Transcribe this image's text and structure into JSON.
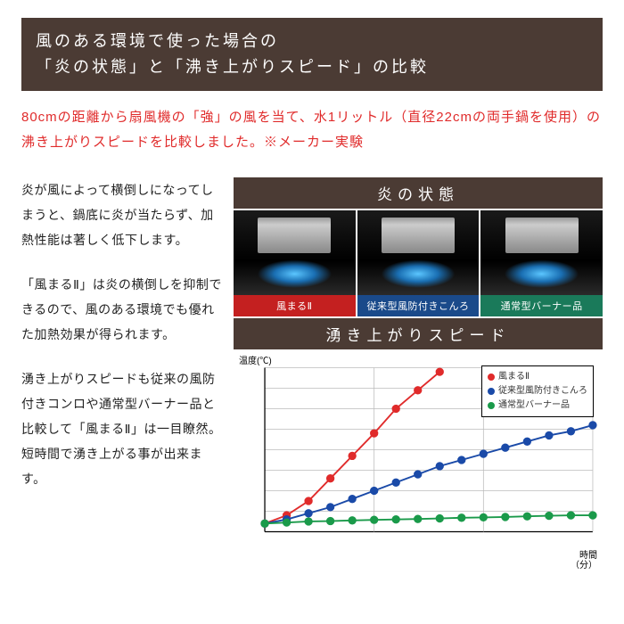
{
  "header": {
    "line1": "風のある環境で使った場合の",
    "line2": "「炎の状態」と「沸き上がりスピード」の比較"
  },
  "test_desc": "80cmの距離から扇風機の「強」の風を当て、水1リットル（直径22cmの両手鍋を使用）の沸き上がりスピードを比較しました。※メーカー実験",
  "paragraphs": {
    "p1": "炎が風によって横倒しになってしまうと、鍋底に炎が当たらず、加熱性能は著しく低下します。",
    "p2": "「風まるⅡ」は炎の横倒しを抑制できるので、風のある環境でも優れた加熱効果が得られます。",
    "p3": "湧き上がりスピードも従来の風防付きコンロや通常型バーナー品と比較して「風まるⅡ」は一目瞭然。短時間で湧き上がる事が出来ます。"
  },
  "flame_section": {
    "title": "炎の状態",
    "items": [
      {
        "label": "風まるⅡ",
        "label_color": "#c42020"
      },
      {
        "label": "従来型風防付きこんろ",
        "label_color": "#1a4a8a"
      },
      {
        "label": "通常型バーナー品",
        "label_color": "#1a7a5a"
      }
    ]
  },
  "chart_section": {
    "title": "湧き上がりスピード",
    "ylabel": "温度(℃)",
    "xlabel_top": "時間",
    "xlabel_bottom": "（分）",
    "ylim": [
      20,
      100
    ],
    "ytick_step": 10,
    "xlim": [
      0,
      15
    ],
    "xticks": [
      0,
      5,
      10,
      15
    ],
    "grid_color": "#bbbbbb",
    "axis_color": "#000000",
    "tick_fontsize": 10,
    "marker_radius": 3.2,
    "line_width": 1.5,
    "series": [
      {
        "name": "風まるⅡ",
        "color": "#e02b2b",
        "x": [
          0,
          1,
          2,
          3,
          4,
          5,
          6,
          7,
          8
        ],
        "y": [
          24,
          28,
          35,
          46,
          57,
          68,
          80,
          89,
          98
        ]
      },
      {
        "name": "従来型風防付きこんろ",
        "color": "#1a4aa8",
        "x": [
          0,
          1,
          2,
          3,
          4,
          5,
          6,
          7,
          8,
          9,
          10,
          11,
          12,
          13,
          14,
          15
        ],
        "y": [
          24,
          26,
          29,
          32,
          36,
          40,
          44,
          48,
          52,
          55,
          58,
          61,
          64,
          67,
          69,
          72
        ]
      },
      {
        "name": "通常型バーナー品",
        "color": "#1a9a4a",
        "x": [
          0,
          1,
          2,
          3,
          4,
          5,
          6,
          7,
          8,
          9,
          10,
          11,
          12,
          13,
          14,
          15
        ],
        "y": [
          24,
          24.5,
          25,
          25.2,
          25.5,
          25.8,
          26,
          26.2,
          26.5,
          26.8,
          27,
          27.2,
          27.5,
          27.8,
          28,
          28
        ]
      }
    ]
  }
}
